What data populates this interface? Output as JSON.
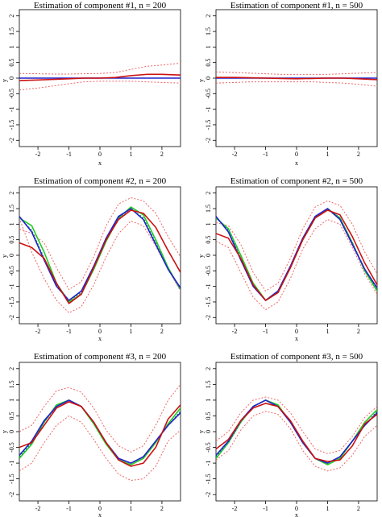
{
  "colors": {
    "truth": "#2222cc",
    "estimate": "#cc1111",
    "band": "#ee6666",
    "alt": "#22cc22",
    "alt_dotted": "#1a8f6a"
  },
  "chart_data": [
    {
      "type": "line",
      "title": "Estimation of component #1, n = 200",
      "xlabel": "x",
      "ylabel": "y",
      "xlim": [
        -2.6,
        2.6
      ],
      "ylim": [
        -2.2,
        2.2
      ],
      "xticks": [
        "-2",
        "-1",
        "0",
        "1",
        "2"
      ],
      "yticks": [
        "2",
        "1.5",
        "1",
        "0.5",
        "0",
        "-0.5",
        "-1",
        "-1.5",
        "-2"
      ],
      "x": [
        -2.6,
        -2.0,
        -1.5,
        -1.0,
        -0.5,
        0.0,
        0.5,
        1.0,
        1.5,
        2.0,
        2.6
      ],
      "series": [
        {
          "role": "truth",
          "values": [
            0,
            0,
            0,
            0,
            0,
            0,
            0,
            0,
            0,
            0,
            0
          ]
        },
        {
          "role": "estimate",
          "values": [
            -0.08,
            -0.06,
            -0.04,
            -0.02,
            0.0,
            0.0,
            0.02,
            0.08,
            0.12,
            0.12,
            0.1
          ]
        },
        {
          "role": "upper",
          "values": [
            0.15,
            0.14,
            0.13,
            0.13,
            0.14,
            0.15,
            0.18,
            0.28,
            0.38,
            0.42,
            0.48
          ]
        },
        {
          "role": "lower",
          "values": [
            -0.38,
            -0.32,
            -0.25,
            -0.18,
            -0.12,
            -0.1,
            -0.1,
            -0.1,
            -0.12,
            -0.14,
            -0.16
          ]
        }
      ]
    },
    {
      "type": "line",
      "title": "Estimation of component #1, n = 500",
      "xlabel": "x",
      "ylabel": "y",
      "xlim": [
        -2.6,
        2.6
      ],
      "ylim": [
        -2.2,
        2.2
      ],
      "xticks": [
        "-2",
        "-1",
        "0",
        "1",
        "2"
      ],
      "yticks": [
        "2",
        "1.5",
        "1",
        "0.5",
        "0",
        "-0.5",
        "-1",
        "-1.5",
        "-2"
      ],
      "x": [
        -2.6,
        -2.0,
        -1.5,
        -1.0,
        -0.5,
        0.0,
        0.5,
        1.0,
        1.5,
        2.0,
        2.6
      ],
      "series": [
        {
          "role": "truth",
          "values": [
            0,
            0,
            0,
            0,
            0,
            0,
            0,
            0,
            0,
            0,
            0
          ]
        },
        {
          "role": "estimate",
          "values": [
            0.02,
            0.02,
            0.01,
            0.0,
            -0.01,
            -0.02,
            -0.01,
            0.0,
            0.0,
            -0.02,
            -0.05
          ]
        },
        {
          "role": "upper",
          "values": [
            0.2,
            0.18,
            0.16,
            0.14,
            0.12,
            0.12,
            0.12,
            0.12,
            0.14,
            0.16,
            0.18
          ]
        },
        {
          "role": "lower",
          "values": [
            -0.16,
            -0.14,
            -0.12,
            -0.12,
            -0.12,
            -0.12,
            -0.12,
            -0.14,
            -0.16,
            -0.2,
            -0.26
          ]
        }
      ]
    },
    {
      "type": "line",
      "title": "Estimation of component #2, n = 200",
      "xlabel": "x",
      "ylabel": "y",
      "xlim": [
        -2.6,
        2.6
      ],
      "ylim": [
        -2.2,
        2.2
      ],
      "xticks": [
        "-2",
        "-1",
        "0",
        "1",
        "2"
      ],
      "yticks": [
        "2",
        "1.5",
        "1",
        "0.5",
        "0",
        "-0.5",
        "-1",
        "-1.5",
        "-2"
      ],
      "x": [
        -2.6,
        -2.2,
        -1.8,
        -1.4,
        -1.0,
        -0.6,
        -0.2,
        0.2,
        0.6,
        1.0,
        1.4,
        1.8,
        2.2,
        2.6
      ],
      "series": [
        {
          "role": "truth",
          "values": [
            1.25,
            0.75,
            -0.15,
            -1.0,
            -1.45,
            -1.15,
            -0.35,
            0.55,
            1.25,
            1.5,
            1.15,
            0.35,
            -0.45,
            -1.05
          ]
        },
        {
          "role": "alt",
          "values": [
            1.2,
            0.95,
            0.1,
            -0.9,
            -1.5,
            -1.25,
            -0.45,
            0.45,
            1.2,
            1.55,
            1.3,
            0.5,
            -0.4,
            -1.1
          ]
        },
        {
          "role": "alt_dotted",
          "values": [
            1.22,
            0.8,
            -0.1,
            -0.95,
            -1.45,
            -1.2,
            -0.4,
            0.5,
            1.2,
            1.5,
            1.2,
            0.4,
            -0.45,
            -1.1
          ]
        },
        {
          "role": "estimate",
          "values": [
            0.4,
            0.25,
            -0.1,
            -0.9,
            -1.55,
            -1.25,
            -0.4,
            0.5,
            1.15,
            1.45,
            1.35,
            0.9,
            0.15,
            -0.55
          ]
        },
        {
          "role": "upper",
          "values": [
            0.85,
            0.7,
            0.4,
            -0.4,
            -1.1,
            -0.85,
            -0.05,
            0.95,
            1.65,
            1.85,
            1.75,
            1.35,
            0.6,
            -0.05
          ]
        },
        {
          "role": "lower",
          "values": [
            1.2,
            0.1,
            -0.75,
            -1.45,
            -1.85,
            -1.65,
            -0.95,
            -0.05,
            0.7,
            1.1,
            0.95,
            0.3,
            -0.45,
            -1.15
          ]
        }
      ]
    },
    {
      "type": "line",
      "title": "Estimation of component #2, n = 500",
      "xlabel": "x",
      "ylabel": "y",
      "xlim": [
        -2.6,
        2.6
      ],
      "ylim": [
        -2.2,
        2.2
      ],
      "xticks": [
        "-2",
        "-1",
        "0",
        "1",
        "2"
      ],
      "yticks": [
        "2",
        "1.5",
        "1",
        "0.5",
        "0",
        "-0.5",
        "-1",
        "-1.5",
        "-2"
      ],
      "x": [
        -2.6,
        -2.2,
        -1.8,
        -1.4,
        -1.0,
        -0.6,
        -0.2,
        0.2,
        0.6,
        1.0,
        1.4,
        1.8,
        2.2,
        2.6
      ],
      "series": [
        {
          "role": "truth",
          "values": [
            1.25,
            0.75,
            -0.15,
            -1.0,
            -1.45,
            -1.15,
            -0.35,
            0.55,
            1.25,
            1.5,
            1.15,
            0.35,
            -0.45,
            -1.05
          ]
        },
        {
          "role": "alt",
          "values": [
            1.2,
            0.85,
            0.0,
            -0.9,
            -1.45,
            -1.2,
            -0.4,
            0.5,
            1.2,
            1.5,
            1.2,
            0.4,
            -0.5,
            -1.15
          ]
        },
        {
          "role": "alt_dotted",
          "values": [
            1.22,
            0.8,
            -0.1,
            -0.95,
            -1.45,
            -1.2,
            -0.4,
            0.5,
            1.2,
            1.5,
            1.2,
            0.4,
            -0.45,
            -1.1
          ]
        },
        {
          "role": "estimate",
          "values": [
            0.7,
            0.55,
            -0.1,
            -0.95,
            -1.45,
            -1.2,
            -0.4,
            0.5,
            1.2,
            1.45,
            1.3,
            0.6,
            -0.25,
            -0.95
          ]
        },
        {
          "role": "upper",
          "values": [
            1.05,
            0.95,
            0.35,
            -0.55,
            -1.15,
            -0.9,
            -0.1,
            0.85,
            1.55,
            1.75,
            1.6,
            1.0,
            0.1,
            -0.6
          ]
        },
        {
          "role": "lower",
          "values": [
            0.45,
            0.25,
            -0.55,
            -1.35,
            -1.75,
            -1.5,
            -0.75,
            0.2,
            0.85,
            1.15,
            1.0,
            0.25,
            -0.6,
            -1.25
          ]
        }
      ]
    },
    {
      "type": "line",
      "title": "Estimation of component #3, n = 200",
      "xlabel": "x",
      "ylabel": "y",
      "xlim": [
        -2.6,
        2.6
      ],
      "ylim": [
        -2.2,
        2.2
      ],
      "xticks": [
        "-2",
        "-1",
        "0",
        "1",
        "2"
      ],
      "yticks": [
        "2",
        "1.5",
        "1",
        "0.5",
        "0",
        "-0.5",
        "-1",
        "-1.5",
        "-2"
      ],
      "x": [
        -2.6,
        -2.2,
        -1.8,
        -1.4,
        -1.0,
        -0.6,
        -0.2,
        0.2,
        0.6,
        1.0,
        1.4,
        1.8,
        2.2,
        2.6
      ],
      "series": [
        {
          "role": "truth",
          "values": [
            -0.75,
            -0.3,
            0.35,
            0.8,
            1.0,
            0.8,
            0.3,
            -0.35,
            -0.85,
            -1.0,
            -0.8,
            -0.3,
            0.2,
            0.6
          ]
        },
        {
          "role": "alt",
          "values": [
            -0.85,
            -0.4,
            0.3,
            0.85,
            1.0,
            0.8,
            0.25,
            -0.4,
            -0.9,
            -1.05,
            -0.85,
            -0.35,
            0.25,
            0.75
          ]
        },
        {
          "role": "alt_dotted",
          "values": [
            -0.8,
            -0.35,
            0.3,
            0.8,
            1.0,
            0.8,
            0.3,
            -0.35,
            -0.85,
            -1.0,
            -0.8,
            -0.3,
            0.2,
            0.65
          ]
        },
        {
          "role": "estimate",
          "values": [
            -0.5,
            -0.35,
            0.2,
            0.75,
            0.95,
            0.8,
            0.3,
            -0.35,
            -0.9,
            -1.1,
            -1.0,
            -0.5,
            0.4,
            0.85
          ]
        },
        {
          "role": "upper",
          "values": [
            0.0,
            0.2,
            0.8,
            1.3,
            1.4,
            1.25,
            0.75,
            0.05,
            -0.45,
            -0.65,
            -0.45,
            0.2,
            1.0,
            1.5
          ]
        },
        {
          "role": "lower",
          "values": [
            -1.25,
            -1.0,
            -0.35,
            0.2,
            0.5,
            0.3,
            -0.25,
            -0.85,
            -1.35,
            -1.55,
            -1.5,
            -1.1,
            -0.3,
            0.05
          ]
        }
      ]
    },
    {
      "type": "line",
      "title": "Estimation of component #3, n = 500",
      "xlabel": "x",
      "ylabel": "y",
      "xlim": [
        -2.6,
        2.6
      ],
      "ylim": [
        -2.2,
        2.2
      ],
      "xticks": [
        "-2",
        "-1",
        "0",
        "1",
        "2"
      ],
      "yticks": [
        "2",
        "1.5",
        "1",
        "0.5",
        "0",
        "-0.5",
        "-1",
        "-1.5",
        "-2"
      ],
      "x": [
        -2.6,
        -2.2,
        -1.8,
        -1.4,
        -1.0,
        -0.6,
        -0.2,
        0.2,
        0.6,
        1.0,
        1.4,
        1.8,
        2.2,
        2.6
      ],
      "series": [
        {
          "role": "truth",
          "values": [
            -0.75,
            -0.3,
            0.35,
            0.8,
            1.0,
            0.8,
            0.3,
            -0.35,
            -0.85,
            -1.0,
            -0.8,
            -0.3,
            0.2,
            0.6
          ]
        },
        {
          "role": "alt",
          "values": [
            -0.85,
            -0.35,
            0.3,
            0.8,
            1.0,
            0.85,
            0.3,
            -0.35,
            -0.85,
            -1.05,
            -0.85,
            -0.3,
            0.3,
            0.7
          ]
        },
        {
          "role": "alt_dotted",
          "values": [
            -0.8,
            -0.35,
            0.3,
            0.8,
            1.0,
            0.8,
            0.3,
            -0.35,
            -0.85,
            -1.0,
            -0.8,
            -0.3,
            0.2,
            0.65
          ]
        },
        {
          "role": "estimate",
          "values": [
            -0.55,
            -0.25,
            0.35,
            0.75,
            0.9,
            0.8,
            0.35,
            -0.3,
            -0.85,
            -0.95,
            -0.9,
            -0.45,
            0.25,
            0.55
          ]
        },
        {
          "role": "upper",
          "values": [
            -0.3,
            0.0,
            0.6,
            1.0,
            1.1,
            1.0,
            0.6,
            0.0,
            -0.55,
            -0.7,
            -0.6,
            -0.15,
            0.45,
            0.8
          ]
        },
        {
          "role": "lower",
          "values": [
            -0.9,
            -0.6,
            0.05,
            0.5,
            0.65,
            0.55,
            0.1,
            -0.6,
            -1.1,
            -1.25,
            -1.15,
            -0.75,
            -0.15,
            0.2
          ]
        }
      ]
    }
  ]
}
